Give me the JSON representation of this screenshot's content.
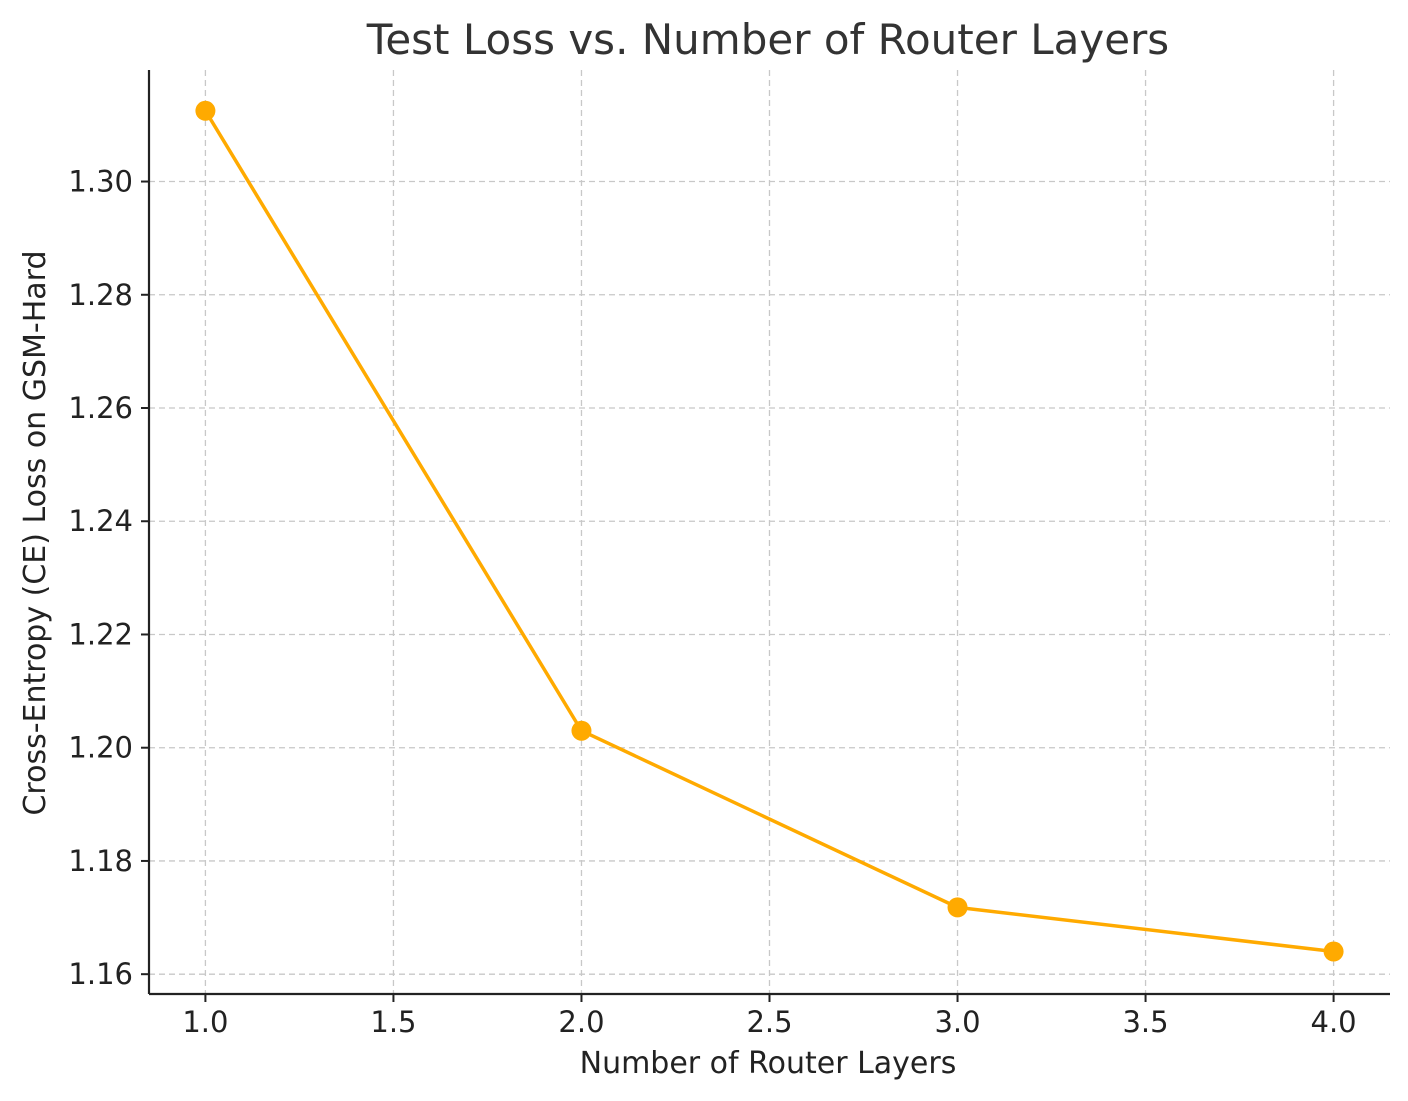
{
  "chart_data": {
    "type": "line",
    "title": "Test Loss vs. Number of Router Layers",
    "xlabel": "Number of Router Layers",
    "ylabel": "Cross-Entropy (CE) Loss on GSM-Hard",
    "x": [
      1.0,
      2.0,
      3.0,
      4.0
    ],
    "series": [
      {
        "values": [
          1.3125,
          1.203,
          1.1718,
          1.164
        ],
        "color": "#FFAA00",
        "marker": "circle"
      }
    ],
    "xlim": [
      0.85,
      4.15
    ],
    "ylim": [
      1.1565,
      1.3197
    ],
    "x_ticks": [
      1.0,
      1.5,
      2.0,
      2.5,
      3.0,
      3.5,
      4.0
    ],
    "x_tick_labels": [
      "1.0",
      "1.5",
      "2.0",
      "2.5",
      "3.0",
      "3.5",
      "4.0"
    ],
    "y_ticks": [
      1.16,
      1.18,
      1.2,
      1.22,
      1.24,
      1.26,
      1.28,
      1.3
    ],
    "y_tick_labels": [
      "1.16",
      "1.18",
      "1.20",
      "1.22",
      "1.24",
      "1.26",
      "1.28",
      "1.30"
    ],
    "grid": true,
    "grid_style": "dashed",
    "legend": "none"
  }
}
